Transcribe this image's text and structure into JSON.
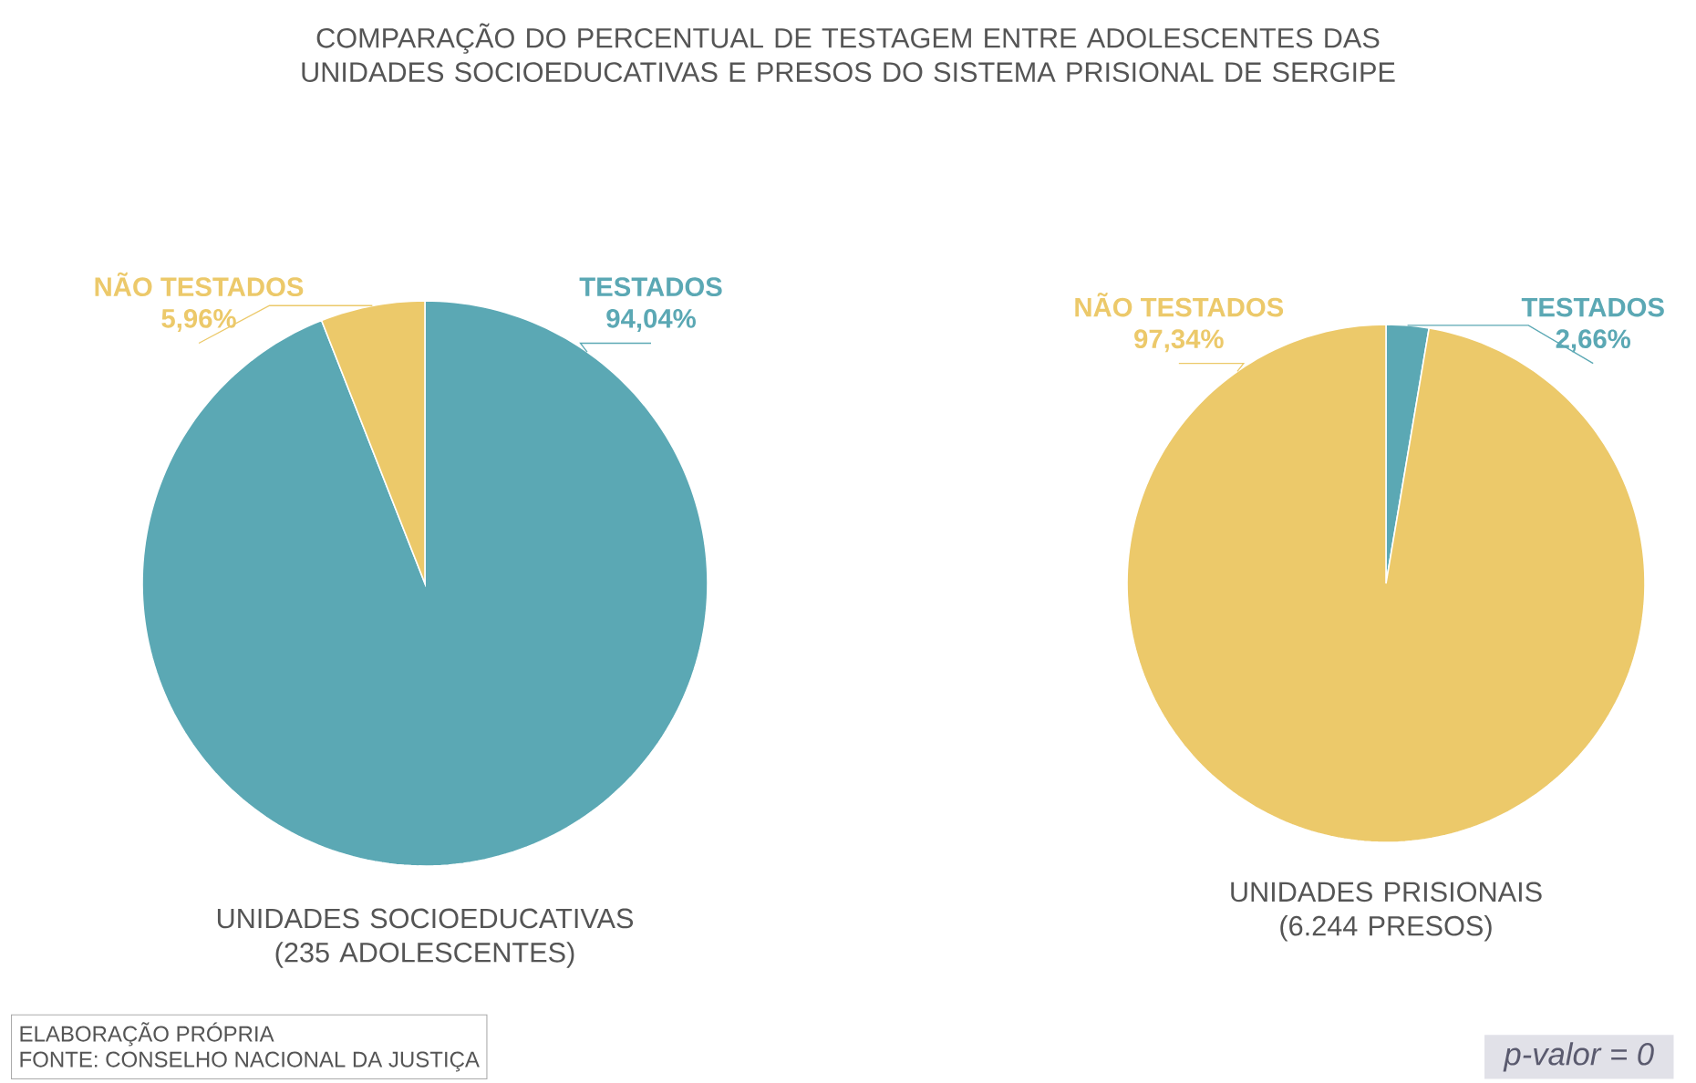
{
  "chart_data": [
    {
      "type": "pie",
      "title": "COMPARAÇÃO DO PERCENTUAL DE TESTAGEM ENTRE ADOLESCENTES DAS UNIDADES SOCIOEDUCATIVAS E PRESOS DO SISTEMA PRISIONAL DE SERGIPE",
      "xlabel": "UNIDADES SOCIOEDUCATIVAS (235 ADOLESCENTES)",
      "categories": [
        "TESTADOS",
        "NÃO TESTADOS"
      ],
      "values": [
        94.04,
        5.96
      ],
      "value_labels": [
        "94,04%",
        "5,96%"
      ],
      "colors": [
        "#5ba8b4",
        "#ecc96a"
      ],
      "annotations": [
        "ELABORAÇÃO PRÓPRIA",
        "FONTE: CONSELHO NACIONAL DA JUSTIÇA"
      ]
    },
    {
      "type": "pie",
      "xlabel": "UNIDADES PRISIONAIS (6.244 PRESOS)",
      "categories": [
        "TESTADOS",
        "NÃO TESTADOS"
      ],
      "values": [
        2.66,
        97.34
      ],
      "value_labels": [
        "2,66%",
        "97,34%"
      ],
      "colors": [
        "#5ba8b4",
        "#ecc96a"
      ],
      "annotations": [
        "p-valor = 0"
      ]
    }
  ]
}
